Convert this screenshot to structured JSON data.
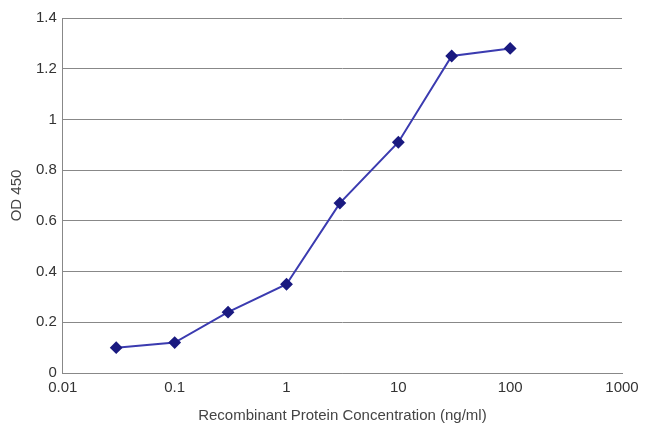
{
  "chart_data": {
    "type": "line",
    "x_label": "Recombinant Protein Concentration (ng/ml)",
    "y_label": "OD 450",
    "x": [
      0.03,
      0.1,
      0.3,
      1,
      3,
      10,
      30,
      100
    ],
    "values": [
      0.1,
      0.12,
      0.24,
      0.35,
      0.67,
      0.91,
      1.25,
      1.28
    ],
    "color": "#3b3bb0",
    "marker": "diamond",
    "log": "x",
    "xlim": [
      0.01,
      1000
    ],
    "xticks": [
      0.01,
      0.1,
      1,
      10,
      100,
      1000
    ],
    "ylim": [
      0,
      1.4
    ],
    "yticks": [
      0,
      0.2,
      0.4,
      0.6,
      0.8,
      1,
      1.2,
      1.4
    ],
    "grid": "y"
  }
}
